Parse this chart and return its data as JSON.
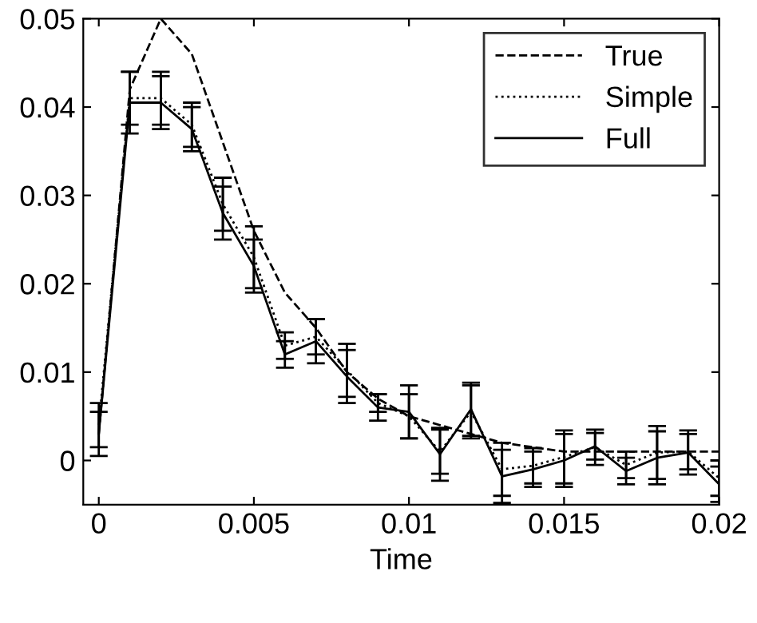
{
  "chart_data": {
    "type": "line",
    "xlabel": "Time",
    "x": [
      0,
      0.001,
      0.002,
      0.003,
      0.004,
      0.005,
      0.006,
      0.007,
      0.008,
      0.009,
      0.01,
      0.011,
      0.012,
      0.013,
      0.014,
      0.015,
      0.016,
      0.017,
      0.018,
      0.019,
      0.02
    ],
    "series": [
      {
        "name": "True",
        "color": "#000000",
        "line_style": "dashed",
        "values": [
          0.003,
          0.042,
          0.05,
          0.046,
          0.036,
          0.026,
          0.019,
          0.015,
          0.01,
          0.007,
          0.005,
          0.004,
          0.003,
          0.002,
          0.0015,
          0.001,
          0.001,
          0.001,
          0.001,
          0.001,
          0.001
        ]
      },
      {
        "name": "Simple",
        "color": "#000000",
        "line_style": "dotted",
        "values": [
          0.004,
          0.041,
          0.041,
          0.038,
          0.029,
          0.023,
          0.013,
          0.014,
          0.0102,
          0.0065,
          0.005,
          0.001,
          0.0055,
          -0.001,
          -0.0006,
          0.0004,
          0.0015,
          -0.0005,
          0.0009,
          0.001,
          -0.002
        ],
        "errors": [
          0.0025,
          0.003,
          0.003,
          0.0025,
          0.003,
          0.0035,
          0.0015,
          0.002,
          0.003,
          0.001,
          0.0025,
          0.0025,
          0.003,
          0.003,
          0.002,
          0.003,
          0.002,
          0.0015,
          0.003,
          0.002,
          0.002
        ]
      },
      {
        "name": "Full",
        "color": "#000000",
        "line_style": "solid",
        "values": [
          0.003,
          0.0405,
          0.0405,
          0.0375,
          0.028,
          0.022,
          0.012,
          0.0135,
          0.0095,
          0.006,
          0.0055,
          0.0007,
          0.0058,
          -0.0018,
          -0.001,
          0,
          0.0016,
          -0.0012,
          0.0003,
          0.0009,
          -0.0027
        ],
        "errors": [
          0.0025,
          0.0035,
          0.003,
          0.0025,
          0.003,
          0.003,
          0.0015,
          0.0025,
          0.003,
          0.0015,
          0.003,
          0.003,
          0.003,
          0.003,
          0.002,
          0.003,
          0.0015,
          0.0015,
          0.003,
          0.0025,
          0.002
        ]
      }
    ],
    "xlim": [
      -0.0005,
      0.02
    ],
    "ylim": [
      -0.005,
      0.05
    ],
    "xticks": [
      0,
      0.005,
      0.01,
      0.015,
      0.02
    ],
    "yticks": [
      0,
      0.01,
      0.02,
      0.03,
      0.04,
      0.05
    ],
    "grid": false,
    "legend": "top right"
  }
}
